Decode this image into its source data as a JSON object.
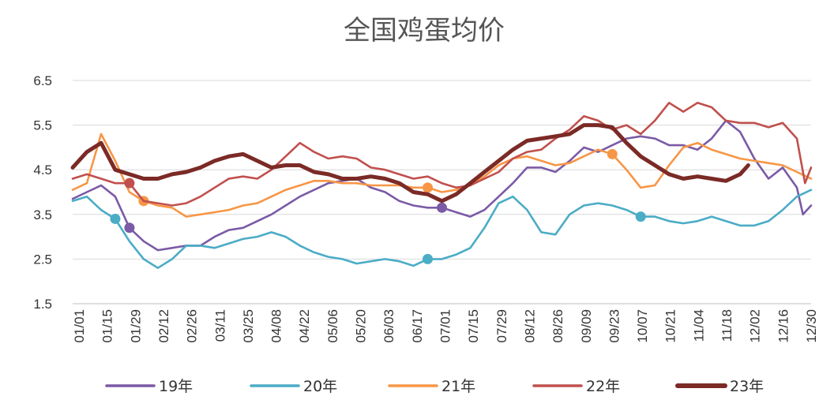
{
  "chart_data": {
    "type": "line",
    "title": "全国鸡蛋均价",
    "xlabel": "",
    "ylabel": "",
    "ylim": [
      1.5,
      6.5
    ],
    "yticks": [
      "1.5",
      "2.5",
      "3.5",
      "4.5",
      "5.5",
      "6.5"
    ],
    "xtick_labels": [
      "01/01",
      "01/15",
      "01/29",
      "02/12",
      "02/26",
      "03/11",
      "03/25",
      "04/08",
      "04/22",
      "05/06",
      "05/20",
      "06/03",
      "06/17",
      "07/01",
      "07/15",
      "07/29",
      "08/12",
      "08/26",
      "09/09",
      "09/23",
      "10/07",
      "10/21",
      "11/04",
      "11/18",
      "12/02",
      "12/16",
      "12/30"
    ],
    "x_day_range": [
      1,
      365
    ],
    "grid": "horizontal",
    "legend_position": "bottom",
    "series": [
      {
        "name": "19年",
        "color": "#7b5aa6",
        "marker_days": [
          29,
          183
        ],
        "points": [
          [
            1,
            3.85
          ],
          [
            8,
            4.0
          ],
          [
            15,
            4.15
          ],
          [
            22,
            3.9
          ],
          [
            29,
            3.2
          ],
          [
            36,
            2.9
          ],
          [
            43,
            2.7
          ],
          [
            50,
            2.75
          ],
          [
            57,
            2.8
          ],
          [
            64,
            2.8
          ],
          [
            71,
            3.0
          ],
          [
            78,
            3.15
          ],
          [
            85,
            3.2
          ],
          [
            92,
            3.35
          ],
          [
            99,
            3.5
          ],
          [
            106,
            3.7
          ],
          [
            113,
            3.9
          ],
          [
            120,
            4.05
          ],
          [
            127,
            4.2
          ],
          [
            134,
            4.25
          ],
          [
            141,
            4.3
          ],
          [
            148,
            4.1
          ],
          [
            155,
            4.0
          ],
          [
            162,
            3.8
          ],
          [
            169,
            3.7
          ],
          [
            176,
            3.65
          ],
          [
            183,
            3.65
          ],
          [
            190,
            3.55
          ],
          [
            197,
            3.45
          ],
          [
            204,
            3.6
          ],
          [
            211,
            3.9
          ],
          [
            218,
            4.2
          ],
          [
            225,
            4.55
          ],
          [
            232,
            4.55
          ],
          [
            239,
            4.45
          ],
          [
            246,
            4.7
          ],
          [
            253,
            5.0
          ],
          [
            260,
            4.9
          ],
          [
            267,
            5.05
          ],
          [
            274,
            5.2
          ],
          [
            281,
            5.25
          ],
          [
            288,
            5.2
          ],
          [
            295,
            5.05
          ],
          [
            302,
            5.05
          ],
          [
            309,
            4.95
          ],
          [
            316,
            5.2
          ],
          [
            323,
            5.6
          ],
          [
            330,
            5.35
          ],
          [
            337,
            4.75
          ],
          [
            344,
            4.3
          ],
          [
            351,
            4.55
          ],
          [
            358,
            4.1
          ],
          [
            361,
            3.5
          ],
          [
            365,
            3.7
          ]
        ]
      },
      {
        "name": "20年",
        "color": "#4bacc6",
        "marker_days": [
          22,
          176,
          281
        ],
        "points": [
          [
            1,
            3.8
          ],
          [
            8,
            3.9
          ],
          [
            15,
            3.6
          ],
          [
            22,
            3.4
          ],
          [
            29,
            2.9
          ],
          [
            36,
            2.5
          ],
          [
            43,
            2.3
          ],
          [
            50,
            2.5
          ],
          [
            57,
            2.8
          ],
          [
            64,
            2.8
          ],
          [
            71,
            2.75
          ],
          [
            78,
            2.85
          ],
          [
            85,
            2.95
          ],
          [
            92,
            3.0
          ],
          [
            99,
            3.1
          ],
          [
            106,
            3.0
          ],
          [
            113,
            2.8
          ],
          [
            120,
            2.65
          ],
          [
            127,
            2.55
          ],
          [
            134,
            2.5
          ],
          [
            141,
            2.4
          ],
          [
            148,
            2.45
          ],
          [
            155,
            2.5
          ],
          [
            162,
            2.45
          ],
          [
            169,
            2.35
          ],
          [
            176,
            2.5
          ],
          [
            183,
            2.5
          ],
          [
            190,
            2.6
          ],
          [
            197,
            2.75
          ],
          [
            204,
            3.2
          ],
          [
            211,
            3.75
          ],
          [
            218,
            3.9
          ],
          [
            225,
            3.6
          ],
          [
            232,
            3.1
          ],
          [
            239,
            3.05
          ],
          [
            246,
            3.5
          ],
          [
            253,
            3.7
          ],
          [
            260,
            3.75
          ],
          [
            267,
            3.7
          ],
          [
            274,
            3.6
          ],
          [
            281,
            3.45
          ],
          [
            288,
            3.45
          ],
          [
            295,
            3.35
          ],
          [
            302,
            3.3
          ],
          [
            309,
            3.35
          ],
          [
            316,
            3.45
          ],
          [
            323,
            3.35
          ],
          [
            330,
            3.25
          ],
          [
            337,
            3.25
          ],
          [
            344,
            3.35
          ],
          [
            351,
            3.6
          ],
          [
            358,
            3.9
          ],
          [
            365,
            4.05
          ]
        ]
      },
      {
        "name": "21年",
        "color": "#f79646",
        "marker_days": [
          36,
          176,
          267
        ],
        "points": [
          [
            1,
            4.05
          ],
          [
            8,
            4.2
          ],
          [
            15,
            5.3
          ],
          [
            22,
            4.7
          ],
          [
            29,
            4.0
          ],
          [
            36,
            3.8
          ],
          [
            43,
            3.7
          ],
          [
            50,
            3.65
          ],
          [
            57,
            3.45
          ],
          [
            64,
            3.5
          ],
          [
            71,
            3.55
          ],
          [
            78,
            3.6
          ],
          [
            85,
            3.7
          ],
          [
            92,
            3.75
          ],
          [
            99,
            3.9
          ],
          [
            106,
            4.05
          ],
          [
            113,
            4.15
          ],
          [
            120,
            4.25
          ],
          [
            127,
            4.25
          ],
          [
            134,
            4.2
          ],
          [
            141,
            4.2
          ],
          [
            148,
            4.15
          ],
          [
            155,
            4.15
          ],
          [
            162,
            4.15
          ],
          [
            169,
            4.1
          ],
          [
            176,
            4.1
          ],
          [
            183,
            4.0
          ],
          [
            190,
            4.05
          ],
          [
            197,
            4.15
          ],
          [
            204,
            4.35
          ],
          [
            211,
            4.6
          ],
          [
            218,
            4.75
          ],
          [
            225,
            4.8
          ],
          [
            232,
            4.7
          ],
          [
            239,
            4.6
          ],
          [
            246,
            4.65
          ],
          [
            253,
            4.8
          ],
          [
            260,
            4.95
          ],
          [
            267,
            4.85
          ],
          [
            274,
            4.5
          ],
          [
            281,
            4.1
          ],
          [
            288,
            4.15
          ],
          [
            295,
            4.6
          ],
          [
            302,
            5.0
          ],
          [
            309,
            5.1
          ],
          [
            316,
            4.95
          ],
          [
            323,
            4.85
          ],
          [
            330,
            4.75
          ],
          [
            337,
            4.7
          ],
          [
            344,
            4.65
          ],
          [
            351,
            4.6
          ],
          [
            358,
            4.45
          ],
          [
            365,
            4.3
          ]
        ]
      },
      {
        "name": "22年",
        "color": "#c0504d",
        "marker_days": [
          29
        ],
        "points": [
          [
            1,
            4.3
          ],
          [
            8,
            4.4
          ],
          [
            15,
            4.3
          ],
          [
            22,
            4.2
          ],
          [
            29,
            4.2
          ],
          [
            36,
            3.8
          ],
          [
            43,
            3.75
          ],
          [
            50,
            3.7
          ],
          [
            57,
            3.75
          ],
          [
            64,
            3.9
          ],
          [
            71,
            4.1
          ],
          [
            78,
            4.3
          ],
          [
            85,
            4.35
          ],
          [
            92,
            4.3
          ],
          [
            99,
            4.5
          ],
          [
            106,
            4.8
          ],
          [
            113,
            5.1
          ],
          [
            120,
            4.9
          ],
          [
            127,
            4.75
          ],
          [
            134,
            4.8
          ],
          [
            141,
            4.75
          ],
          [
            148,
            4.55
          ],
          [
            155,
            4.5
          ],
          [
            162,
            4.4
          ],
          [
            169,
            4.3
          ],
          [
            176,
            4.35
          ],
          [
            183,
            4.2
          ],
          [
            190,
            4.1
          ],
          [
            197,
            4.15
          ],
          [
            204,
            4.3
          ],
          [
            211,
            4.45
          ],
          [
            218,
            4.75
          ],
          [
            225,
            4.9
          ],
          [
            232,
            4.95
          ],
          [
            239,
            5.2
          ],
          [
            246,
            5.4
          ],
          [
            253,
            5.7
          ],
          [
            260,
            5.6
          ],
          [
            267,
            5.4
          ],
          [
            274,
            5.5
          ],
          [
            281,
            5.3
          ],
          [
            288,
            5.6
          ],
          [
            295,
            6.0
          ],
          [
            302,
            5.8
          ],
          [
            309,
            6.0
          ],
          [
            316,
            5.9
          ],
          [
            323,
            5.6
          ],
          [
            330,
            5.55
          ],
          [
            337,
            5.55
          ],
          [
            344,
            5.45
          ],
          [
            351,
            5.55
          ],
          [
            358,
            5.2
          ],
          [
            362,
            4.2
          ],
          [
            365,
            4.55
          ]
        ]
      },
      {
        "name": "23年",
        "color": "#7b2a26",
        "marker_days": [],
        "points": [
          [
            1,
            4.55
          ],
          [
            8,
            4.9
          ],
          [
            15,
            5.1
          ],
          [
            22,
            4.5
          ],
          [
            29,
            4.4
          ],
          [
            36,
            4.3
          ],
          [
            43,
            4.3
          ],
          [
            50,
            4.4
          ],
          [
            57,
            4.45
          ],
          [
            64,
            4.55
          ],
          [
            71,
            4.7
          ],
          [
            78,
            4.8
          ],
          [
            85,
            4.85
          ],
          [
            92,
            4.7
          ],
          [
            99,
            4.55
          ],
          [
            106,
            4.6
          ],
          [
            113,
            4.6
          ],
          [
            120,
            4.45
          ],
          [
            127,
            4.4
          ],
          [
            134,
            4.3
          ],
          [
            141,
            4.3
          ],
          [
            148,
            4.35
          ],
          [
            155,
            4.3
          ],
          [
            162,
            4.2
          ],
          [
            169,
            4.0
          ],
          [
            176,
            3.95
          ],
          [
            183,
            3.8
          ],
          [
            190,
            3.95
          ],
          [
            197,
            4.2
          ],
          [
            204,
            4.45
          ],
          [
            211,
            4.7
          ],
          [
            218,
            4.95
          ],
          [
            225,
            5.15
          ],
          [
            232,
            5.2
          ],
          [
            239,
            5.25
          ],
          [
            246,
            5.3
          ],
          [
            253,
            5.5
          ],
          [
            260,
            5.5
          ],
          [
            267,
            5.45
          ],
          [
            274,
            5.1
          ],
          [
            281,
            4.8
          ],
          [
            288,
            4.6
          ],
          [
            295,
            4.4
          ],
          [
            302,
            4.3
          ],
          [
            309,
            4.35
          ],
          [
            316,
            4.3
          ],
          [
            323,
            4.25
          ],
          [
            330,
            4.4
          ],
          [
            334,
            4.6
          ]
        ]
      }
    ]
  }
}
